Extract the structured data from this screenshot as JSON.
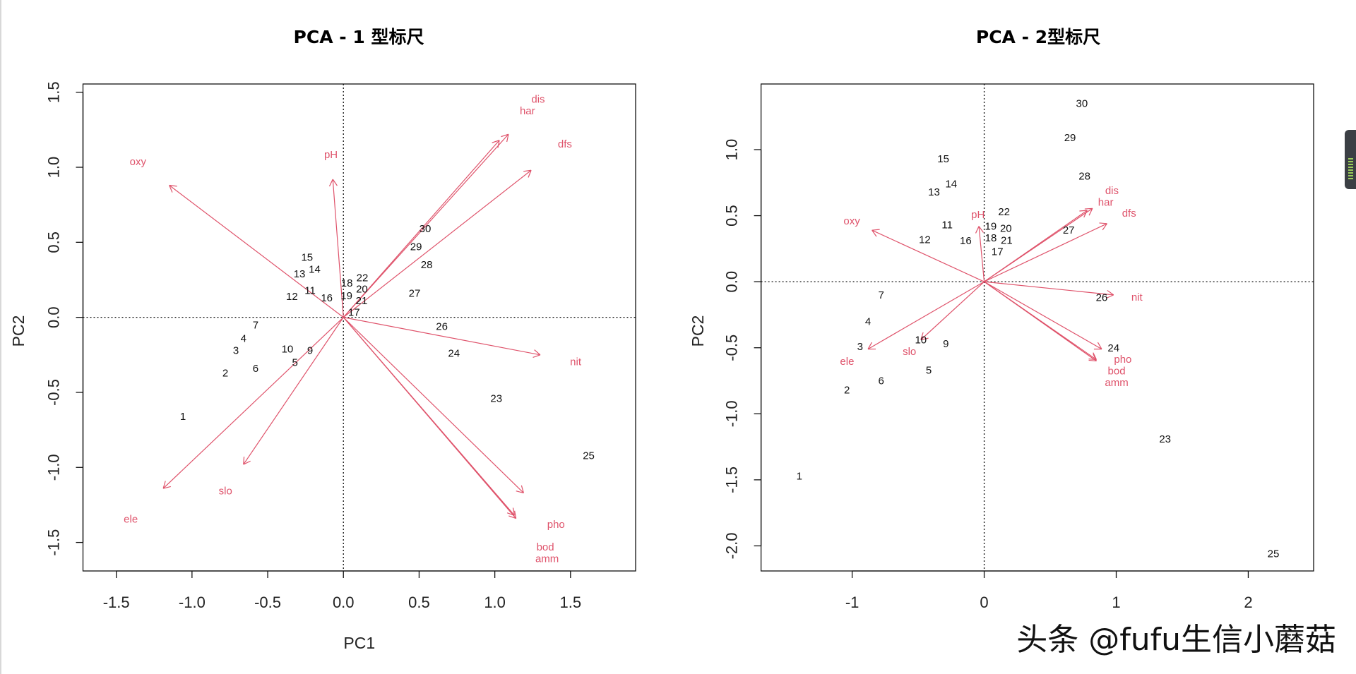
{
  "watermark": "头条 @fufu生信小蘑菇",
  "colors": {
    "points": "#111111",
    "loadings": "#DF536B",
    "axes": "#222222"
  },
  "chart_data": [
    {
      "type": "scatter",
      "title": "PCA - 1 型标尺",
      "xlabel": "PC1",
      "ylabel": "PC2",
      "xlim": [
        -1.72,
        1.93
      ],
      "ylim": [
        -1.69,
        1.555
      ],
      "xticks": [
        {
          "v": -1.5,
          "label": "-1.5"
        },
        {
          "v": -1.0,
          "label": "-1.0"
        },
        {
          "v": -0.5,
          "label": "-0.5"
        },
        {
          "v": 0,
          "label": "0.0"
        },
        {
          "v": 0.5,
          "label": "0.5"
        },
        {
          "v": 1.0,
          "label": "1.0"
        },
        {
          "v": 1.5,
          "label": "1.5"
        }
      ],
      "yticks": [
        {
          "v": -1.5,
          "label": "-1.5"
        },
        {
          "v": -1.0,
          "label": "-1.0"
        },
        {
          "v": -0.5,
          "label": "-0.5"
        },
        {
          "v": 0,
          "label": "0.0"
        },
        {
          "v": 0.5,
          "label": "0.5"
        },
        {
          "v": 1.0,
          "label": "1.0"
        },
        {
          "v": 1.5,
          "label": "1.5"
        }
      ],
      "reference_lines": "dotted at x=0 and y=0",
      "points": [
        {
          "label": "1",
          "x": -1.06,
          "y": -0.66
        },
        {
          "label": "2",
          "x": -0.78,
          "y": -0.37
        },
        {
          "label": "3",
          "x": -0.71,
          "y": -0.22
        },
        {
          "label": "4",
          "x": -0.66,
          "y": -0.14
        },
        {
          "label": "5",
          "x": -0.32,
          "y": -0.3
        },
        {
          "label": "6",
          "x": -0.58,
          "y": -0.34
        },
        {
          "label": "7",
          "x": -0.58,
          "y": -0.05
        },
        {
          "label": "9",
          "x": -0.22,
          "y": -0.22
        },
        {
          "label": "10",
          "x": -0.37,
          "y": -0.21
        },
        {
          "label": "11",
          "x": -0.22,
          "y": 0.18
        },
        {
          "label": "12",
          "x": -0.34,
          "y": 0.14
        },
        {
          "label": "13",
          "x": -0.29,
          "y": 0.29
        },
        {
          "label": "14",
          "x": -0.19,
          "y": 0.32
        },
        {
          "label": "15",
          "x": -0.24,
          "y": 0.4
        },
        {
          "label": "16",
          "x": -0.11,
          "y": 0.13
        },
        {
          "label": "17",
          "x": 0.07,
          "y": 0.135
        },
        {
          "label": "18",
          "x": 0.05,
          "y": 0.15
        },
        {
          "label": "19",
          "x": 0.03,
          "y": 0.17
        },
        {
          "label": "20",
          "x": 0.11,
          "y": 0.15
        },
        {
          "label": "21",
          "x": 0.12,
          "y": 0.135
        },
        {
          "label": "22",
          "x": 0.1,
          "y": 0.23
        },
        {
          "label": "23",
          "x": 1.01,
          "y": -0.54
        },
        {
          "label": "24",
          "x": 0.73,
          "y": -0.24
        },
        {
          "label": "25",
          "x": 1.62,
          "y": -0.92
        },
        {
          "label": "26",
          "x": 0.65,
          "y": -0.06
        },
        {
          "label": "27",
          "x": 0.47,
          "y": 0.16
        },
        {
          "label": "28",
          "x": 0.55,
          "y": 0.35
        },
        {
          "label": "29",
          "x": 0.48,
          "y": 0.47
        },
        {
          "label": "30",
          "x": 0.54,
          "y": 0.59
        }
      ],
      "loadings": [
        {
          "name": "oxy",
          "x": -1.15,
          "y": 0.88
        },
        {
          "name": "pH",
          "x": -0.07,
          "y": 0.92
        },
        {
          "name": "har",
          "x": 1.03,
          "y": 1.18
        },
        {
          "name": "dis",
          "x": 1.09,
          "y": 1.22
        },
        {
          "name": "dfs",
          "x": 1.24,
          "y": 0.98
        },
        {
          "name": "nit",
          "x": 1.3,
          "y": -0.25
        },
        {
          "name": "pho",
          "x": 1.19,
          "y": -1.17
        },
        {
          "name": "bod",
          "x": 1.13,
          "y": -1.32
        },
        {
          "name": "amm",
          "x": 1.14,
          "y": -1.34
        },
        {
          "name": "ele",
          "x": -1.19,
          "y": -1.14
        },
        {
          "name": "slo",
          "x": -0.66,
          "y": -0.98
        }
      ]
    },
    {
      "type": "scatter",
      "title": "PCA - 2型标尺",
      "xlabel": "",
      "ylabel": "PC2",
      "xlim": [
        -1.69,
        2.495
      ],
      "ylim": [
        -2.19,
        1.497
      ],
      "xticks": [
        {
          "v": -1,
          "label": "-1"
        },
        {
          "v": 0,
          "label": "0"
        },
        {
          "v": 1,
          "label": "1"
        },
        {
          "v": 2,
          "label": "2"
        }
      ],
      "yticks": [
        {
          "v": -2.0,
          "label": "-2.0"
        },
        {
          "v": -1.5,
          "label": "-1.5"
        },
        {
          "v": -1.0,
          "label": "-1.0"
        },
        {
          "v": -0.5,
          "label": "-0.5"
        },
        {
          "v": 0,
          "label": "0.0"
        },
        {
          "v": 0.5,
          "label": "0.5"
        },
        {
          "v": 1.0,
          "label": "1.0"
        }
      ],
      "reference_lines": "dotted at x=0 and y=0",
      "points": [
        {
          "label": "1",
          "x": -1.4,
          "y": -1.47
        },
        {
          "label": "2",
          "x": -1.04,
          "y": -0.82
        },
        {
          "label": "3",
          "x": -0.94,
          "y": -0.49
        },
        {
          "label": "4",
          "x": -0.88,
          "y": -0.3
        },
        {
          "label": "5",
          "x": -0.42,
          "y": -0.67
        },
        {
          "label": "6",
          "x": -0.78,
          "y": -0.75
        },
        {
          "label": "7",
          "x": -0.78,
          "y": -0.1
        },
        {
          "label": "9",
          "x": -0.29,
          "y": -0.47
        },
        {
          "label": "10",
          "x": -0.48,
          "y": -0.45
        },
        {
          "label": "11",
          "x": -0.28,
          "y": 0.43
        },
        {
          "label": "12",
          "x": -0.45,
          "y": 0.32
        },
        {
          "label": "13",
          "x": -0.38,
          "y": 0.68
        },
        {
          "label": "14",
          "x": -0.25,
          "y": 0.74
        },
        {
          "label": "15",
          "x": -0.31,
          "y": 0.93
        },
        {
          "label": "16",
          "x": -0.14,
          "y": 0.31
        },
        {
          "label": "17",
          "x": 0.1,
          "y": 0.29
        },
        {
          "label": "18",
          "x": 0.055,
          "y": 0.35
        },
        {
          "label": "19",
          "x": 0.05,
          "y": 0.4
        },
        {
          "label": "20",
          "x": 0.16,
          "y": 0.35
        },
        {
          "label": "21",
          "x": 0.17,
          "y": 0.32
        },
        {
          "label": "22",
          "x": 0.15,
          "y": 0.53
        },
        {
          "label": "23",
          "x": 1.37,
          "y": -1.19
        },
        {
          "label": "24",
          "x": 0.98,
          "y": -0.52
        },
        {
          "label": "25",
          "x": 2.19,
          "y": -2.06
        },
        {
          "label": "26",
          "x": 0.89,
          "y": -0.12
        },
        {
          "label": "27",
          "x": 0.64,
          "y": 0.39
        },
        {
          "label": "28",
          "x": 0.76,
          "y": 0.8
        },
        {
          "label": "29",
          "x": 0.65,
          "y": 1.09
        },
        {
          "label": "30",
          "x": 0.74,
          "y": 1.35
        }
      ],
      "loadings": [
        {
          "name": "oxy",
          "x": -0.85,
          "y": 0.39
        },
        {
          "name": "pH",
          "x": -0.04,
          "y": 0.42
        },
        {
          "name": "har",
          "x": 0.78,
          "y": 0.54
        },
        {
          "name": "dis",
          "x": 0.82,
          "y": 0.555
        },
        {
          "name": "dfs",
          "x": 0.93,
          "y": 0.44
        },
        {
          "name": "nit",
          "x": 0.98,
          "y": -0.1
        },
        {
          "name": "pho",
          "x": 0.89,
          "y": -0.51
        },
        {
          "name": "bod",
          "x": 0.85,
          "y": -0.59
        },
        {
          "name": "amm",
          "x": 0.85,
          "y": -0.6
        },
        {
          "name": "ele",
          "x": -0.88,
          "y": -0.51
        },
        {
          "name": "slo",
          "x": -0.48,
          "y": -0.44
        }
      ]
    }
  ]
}
